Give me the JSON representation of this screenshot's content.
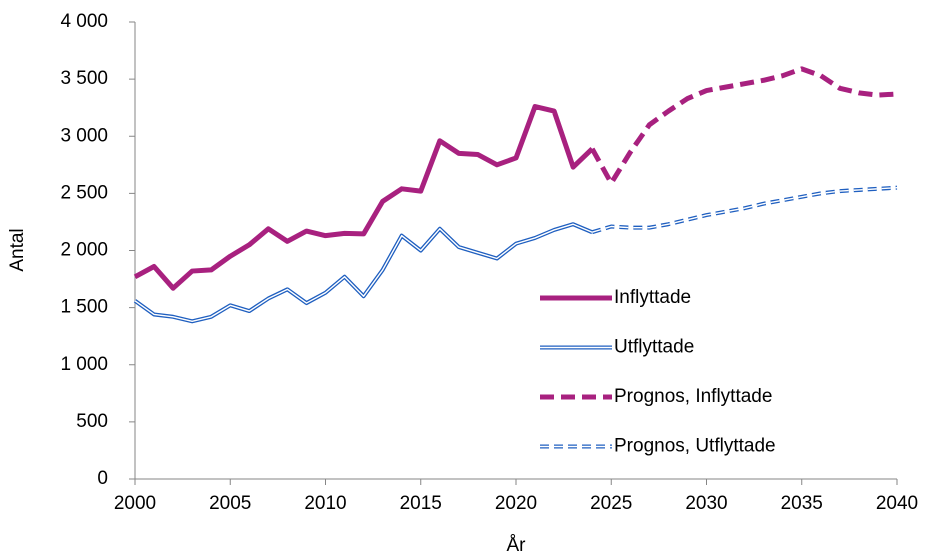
{
  "chart_data": {
    "type": "line",
    "x_label": "År",
    "y_label": "Antal",
    "x": [
      2000,
      2001,
      2002,
      2003,
      2004,
      2005,
      2006,
      2007,
      2008,
      2009,
      2010,
      2011,
      2012,
      2013,
      2014,
      2015,
      2016,
      2017,
      2018,
      2019,
      2020,
      2021,
      2022,
      2023,
      2024,
      2025,
      2026,
      2027,
      2028,
      2029,
      2030,
      2031,
      2032,
      2033,
      2034,
      2035,
      2036,
      2037,
      2038,
      2039,
      2040
    ],
    "series": [
      {
        "name": "Inflyttade",
        "color": "#a8217f",
        "dash": false,
        "double": false,
        "values": [
          1770,
          1860,
          1670,
          1820,
          1830,
          1950,
          2050,
          2190,
          2080,
          2170,
          2130,
          2150,
          2145,
          2430,
          2540,
          2520,
          2960,
          2850,
          2840,
          2750,
          2810,
          3260,
          3220,
          2730,
          2890,
          null,
          null,
          null,
          null,
          null,
          null,
          null,
          null,
          null,
          null,
          null,
          null,
          null,
          null,
          null,
          null
        ]
      },
      {
        "name": "Utflyttade",
        "color": "#1f5fc0",
        "dash": false,
        "double": true,
        "values": [
          1560,
          1440,
          1420,
          1380,
          1420,
          1520,
          1470,
          1580,
          1660,
          1540,
          1630,
          1770,
          1600,
          1830,
          2130,
          2000,
          2190,
          2030,
          1980,
          1930,
          2060,
          2110,
          2180,
          2230,
          2160,
          null,
          null,
          null,
          null,
          null,
          null,
          null,
          null,
          null,
          null,
          null,
          null,
          null,
          null,
          null,
          null
        ]
      },
      {
        "name": "Prognos, Inflyttade",
        "color": "#a8217f",
        "dash": true,
        "double": false,
        "values": [
          null,
          null,
          null,
          null,
          null,
          null,
          null,
          null,
          null,
          null,
          null,
          null,
          null,
          null,
          null,
          null,
          null,
          null,
          null,
          null,
          null,
          null,
          null,
          null,
          2890,
          2590,
          2860,
          3100,
          3220,
          3330,
          3400,
          3430,
          3460,
          3490,
          3530,
          3590,
          3530,
          3420,
          3380,
          3360,
          3370
        ]
      },
      {
        "name": "Prognos, Utflyttade",
        "color": "#1f5fc0",
        "dash": true,
        "double": true,
        "values": [
          null,
          null,
          null,
          null,
          null,
          null,
          null,
          null,
          null,
          null,
          null,
          null,
          null,
          null,
          null,
          null,
          null,
          null,
          null,
          null,
          null,
          null,
          null,
          null,
          2160,
          2210,
          2200,
          2200,
          2230,
          2270,
          2310,
          2340,
          2370,
          2410,
          2440,
          2470,
          2500,
          2520,
          2530,
          2540,
          2550
        ]
      }
    ],
    "xlim": [
      2000,
      2040
    ],
    "xticks": [
      2000,
      2005,
      2010,
      2015,
      2020,
      2025,
      2030,
      2035,
      2040
    ],
    "ylim": [
      0,
      4000
    ],
    "yticks": [
      0,
      500,
      {
        "value": 1000,
        "label": "1 000"
      },
      {
        "value": 1500,
        "label": "1 500"
      },
      {
        "value": 2000,
        "label": "2 000"
      },
      {
        "value": 2500,
        "label": "2 500"
      },
      {
        "value": 3000,
        "label": "3 000"
      },
      {
        "value": 3500,
        "label": "3 500"
      },
      {
        "value": 4000,
        "label": "4 000"
      }
    ],
    "grid": false
  }
}
